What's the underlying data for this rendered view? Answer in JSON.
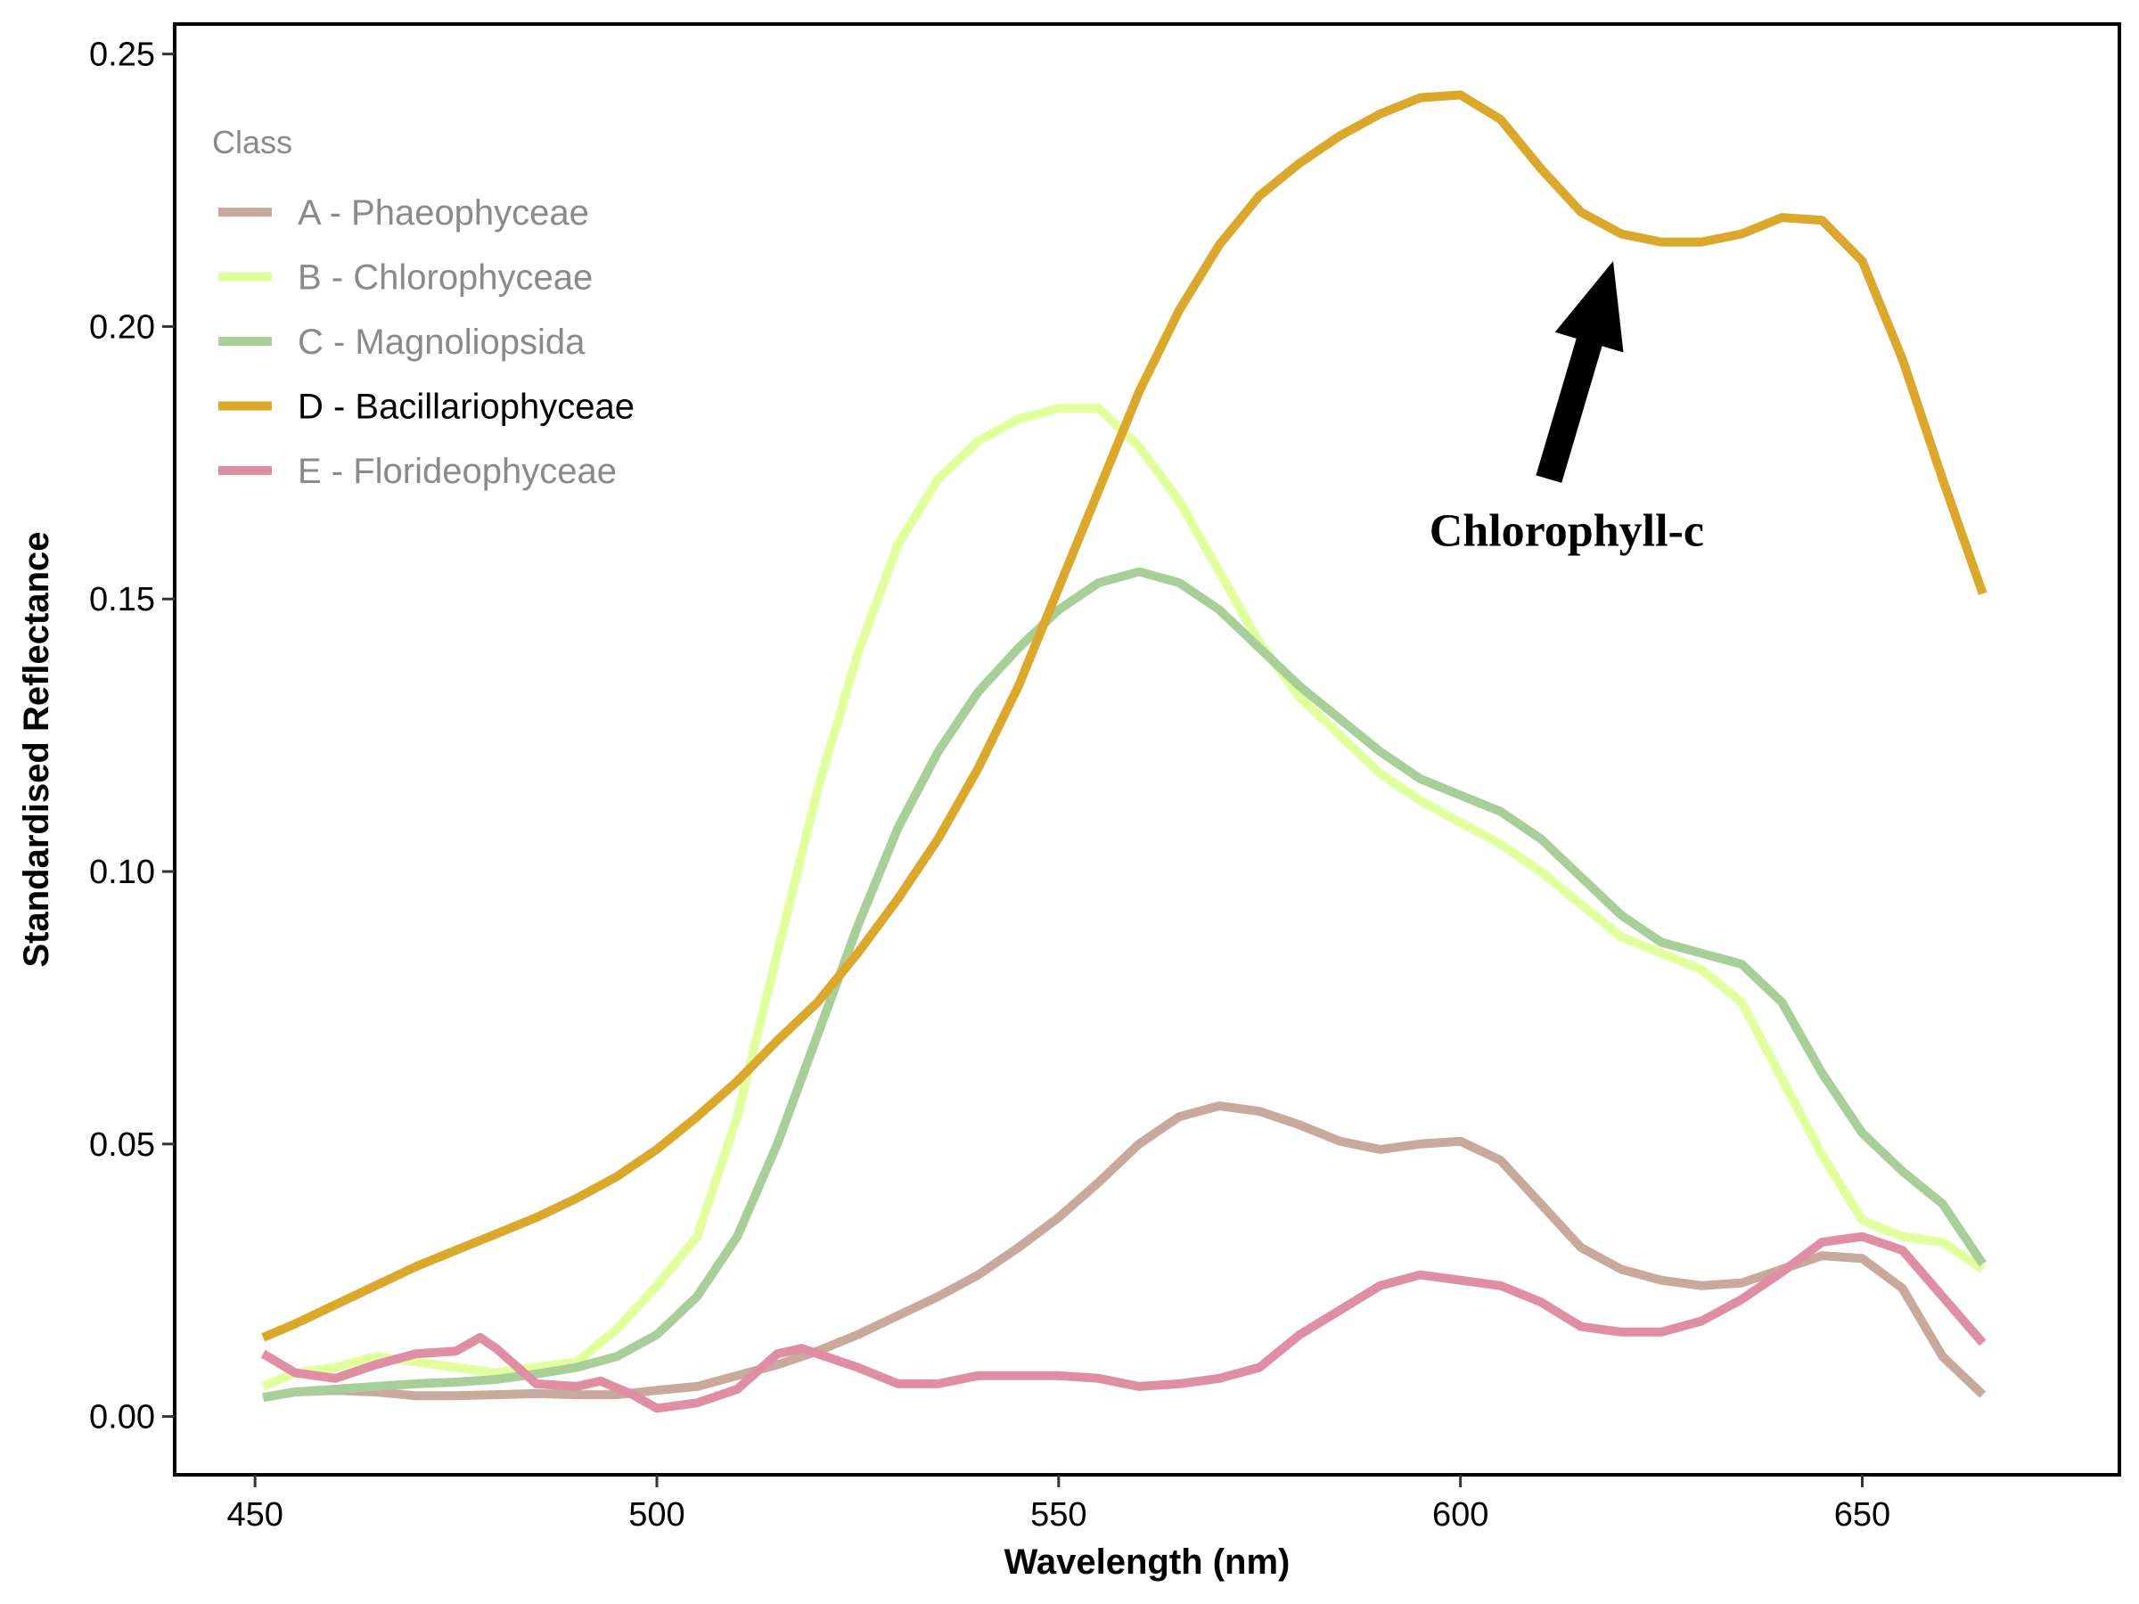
{
  "chart_data": {
    "type": "line",
    "title": "",
    "xlabel": "Wavelength (nm)",
    "ylabel": "Standardised Reflectance",
    "xlim": [
      440,
      682
    ],
    "ylim": [
      -0.0107,
      0.2555
    ],
    "xticks": [
      450,
      500,
      550,
      600,
      650
    ],
    "xtick_labels": [
      "450",
      "500",
      "550",
      "600",
      "650"
    ],
    "yticks": [
      0.0,
      0.05,
      0.1,
      0.15,
      0.2,
      0.25
    ],
    "ytick_labels": [
      "0.00",
      "0.05",
      "0.10",
      "0.15",
      "0.20",
      "0.25"
    ],
    "grid": false,
    "legend": {
      "title": "Class",
      "placement": "top-left",
      "highlighted": "D - Bacillariophyceae"
    },
    "annotation": {
      "text": "Chlorophyll-c",
      "points_to": [
        619,
        0.212
      ],
      "arrow_tail": [
        611,
        0.172
      ]
    },
    "series": [
      {
        "name": "A - Phaeophyceae",
        "color": "#c9a99b",
        "x": [
          451,
          455,
          460,
          465,
          470,
          475,
          480,
          485,
          490,
          495,
          500,
          505,
          510,
          515,
          520,
          525,
          530,
          535,
          540,
          545,
          550,
          555,
          560,
          565,
          570,
          575,
          580,
          585,
          590,
          595,
          600,
          605,
          610,
          615,
          620,
          625,
          630,
          635,
          640,
          645,
          650,
          655,
          660,
          665
        ],
        "values": [
          0.0035,
          0.0045,
          0.0048,
          0.0045,
          0.0038,
          0.0038,
          0.004,
          0.0042,
          0.004,
          0.004,
          0.0048,
          0.0055,
          0.0075,
          0.0095,
          0.012,
          0.015,
          0.0185,
          0.022,
          0.026,
          0.031,
          0.0365,
          0.043,
          0.05,
          0.055,
          0.057,
          0.056,
          0.0535,
          0.0505,
          0.049,
          0.05,
          0.0505,
          0.047,
          0.039,
          0.031,
          0.027,
          0.025,
          0.024,
          0.0245,
          0.027,
          0.0295,
          0.029,
          0.0235,
          0.011,
          0.004
        ]
      },
      {
        "name": "B - Chlorophyceae",
        "color": "#e2ff9d",
        "x": [
          451,
          455,
          460,
          465,
          470,
          475,
          480,
          485,
          490,
          495,
          500,
          505,
          510,
          515,
          520,
          525,
          530,
          535,
          540,
          545,
          550,
          555,
          560,
          565,
          570,
          575,
          580,
          585,
          590,
          595,
          600,
          605,
          610,
          615,
          620,
          625,
          630,
          635,
          640,
          645,
          650,
          655,
          660,
          665
        ],
        "values": [
          0.0055,
          0.008,
          0.009,
          0.011,
          0.01,
          0.009,
          0.008,
          0.009,
          0.01,
          0.016,
          0.024,
          0.033,
          0.055,
          0.085,
          0.115,
          0.14,
          0.16,
          0.172,
          0.179,
          0.183,
          0.185,
          0.185,
          0.178,
          0.168,
          0.155,
          0.142,
          0.132,
          0.125,
          0.118,
          0.113,
          0.109,
          0.105,
          0.1,
          0.094,
          0.088,
          0.085,
          0.082,
          0.076,
          0.062,
          0.048,
          0.036,
          0.033,
          0.032,
          0.027
        ]
      },
      {
        "name": "C - Magnoliopsida",
        "color": "#a8cf98",
        "x": [
          451,
          455,
          460,
          465,
          470,
          475,
          480,
          485,
          490,
          495,
          500,
          505,
          510,
          515,
          520,
          525,
          530,
          535,
          540,
          545,
          550,
          555,
          560,
          565,
          570,
          575,
          580,
          585,
          590,
          595,
          600,
          605,
          610,
          615,
          620,
          625,
          630,
          635,
          640,
          645,
          650,
          655,
          660,
          665
        ],
        "values": [
          0.0035,
          0.0045,
          0.005,
          0.0055,
          0.006,
          0.0063,
          0.0068,
          0.0078,
          0.009,
          0.011,
          0.015,
          0.022,
          0.033,
          0.05,
          0.07,
          0.09,
          0.108,
          0.122,
          0.133,
          0.141,
          0.148,
          0.153,
          0.155,
          0.153,
          0.148,
          0.141,
          0.134,
          0.128,
          0.122,
          0.117,
          0.114,
          0.111,
          0.106,
          0.099,
          0.092,
          0.087,
          0.085,
          0.083,
          0.076,
          0.063,
          0.052,
          0.045,
          0.039,
          0.028
        ]
      },
      {
        "name": "D - Bacillariophyceae",
        "color": "#dba82c",
        "x": [
          451,
          455,
          460,
          465,
          470,
          475,
          480,
          485,
          490,
          495,
          500,
          505,
          510,
          515,
          520,
          525,
          530,
          535,
          540,
          545,
          550,
          555,
          560,
          565,
          570,
          575,
          580,
          585,
          590,
          595,
          600,
          605,
          610,
          615,
          620,
          625,
          630,
          635,
          640,
          645,
          650,
          655,
          660,
          665
        ],
        "values": [
          0.0145,
          0.017,
          0.0205,
          0.024,
          0.0275,
          0.0305,
          0.0335,
          0.0365,
          0.04,
          0.044,
          0.049,
          0.055,
          0.0615,
          0.069,
          0.076,
          0.085,
          0.095,
          0.106,
          0.119,
          0.134,
          0.152,
          0.17,
          0.188,
          0.203,
          0.215,
          0.224,
          0.23,
          0.235,
          0.239,
          0.242,
          0.2425,
          0.238,
          0.229,
          0.221,
          0.217,
          0.2155,
          0.2155,
          0.217,
          0.22,
          0.2195,
          0.212,
          0.194,
          0.172,
          0.151
        ]
      },
      {
        "name": "E - Florideophyceae",
        "color": "#e08ea4",
        "x": [
          451,
          455,
          460,
          465,
          470,
          475,
          478,
          480,
          485,
          490,
          493,
          497,
          500,
          505,
          510,
          515,
          518,
          520,
          525,
          530,
          535,
          540,
          545,
          550,
          555,
          560,
          565,
          570,
          575,
          580,
          585,
          590,
          595,
          600,
          605,
          610,
          615,
          620,
          625,
          630,
          635,
          640,
          645,
          650,
          655,
          660,
          665
        ],
        "values": [
          0.0115,
          0.008,
          0.007,
          0.0095,
          0.0115,
          0.012,
          0.0145,
          0.0125,
          0.006,
          0.0055,
          0.0065,
          0.004,
          0.0015,
          0.0025,
          0.005,
          0.0115,
          0.0125,
          0.0115,
          0.009,
          0.006,
          0.006,
          0.0075,
          0.0075,
          0.0075,
          0.007,
          0.0055,
          0.006,
          0.007,
          0.009,
          0.015,
          0.0195,
          0.024,
          0.026,
          0.025,
          0.024,
          0.021,
          0.0165,
          0.0155,
          0.0155,
          0.0175,
          0.0215,
          0.0265,
          0.032,
          0.033,
          0.0305,
          0.022,
          0.0135
        ]
      }
    ]
  }
}
